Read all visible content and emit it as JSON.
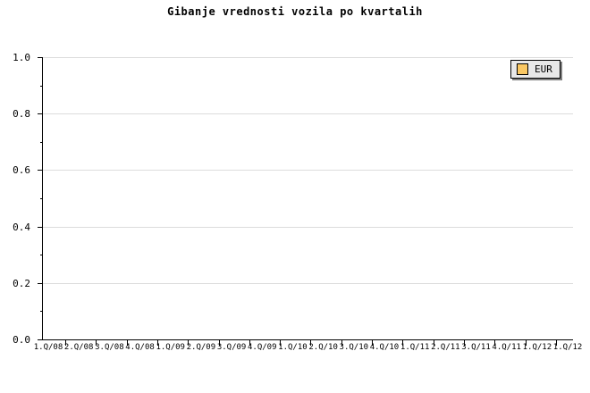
{
  "title": "Gibanje vrednosti vozila po kvartalih",
  "legend": {
    "label": "EUR"
  },
  "colors": {
    "background": "#FFFFFF",
    "text": "#000000",
    "axis_line": "#000000",
    "grid_line": "#DCDCDC",
    "legend_background": "#E8E8E8",
    "legend_border": "#000000",
    "legend_shadow": "#808080",
    "series_eur": "#FAC864"
  },
  "y_axis": {
    "tick_labels": [
      "1.0",
      "0.8",
      "0.6",
      "0.4",
      "0.2",
      "0.0"
    ],
    "major_tick_values": [
      1.0,
      0.8,
      0.6,
      0.4,
      0.2,
      0.0
    ],
    "minor_tick_values": [
      0.9,
      0.7,
      0.5,
      0.3,
      0.1
    ]
  },
  "x_axis": {
    "tick_labels": [
      "1.Q/08",
      "2.Q/08",
      "3.Q/08",
      "4.Q/08",
      "1.Q/09",
      "2.Q/09",
      "3.Q/09",
      "4.Q/09",
      "1.Q/10",
      "2.Q/10",
      "3.Q/10",
      "4.Q/10",
      "1.Q/11",
      "2.Q/11",
      "3.Q/11",
      "4.Q/11",
      "1.Q/12",
      "1.Q/12"
    ]
  },
  "chart_data": {
    "type": "bar",
    "title": "Gibanje vrednosti vozila po kvartalih",
    "categories": [
      "1.Q/08",
      "2.Q/08",
      "3.Q/08",
      "4.Q/08",
      "1.Q/09",
      "2.Q/09",
      "3.Q/09",
      "4.Q/09",
      "1.Q/10",
      "2.Q/10",
      "3.Q/10",
      "4.Q/10",
      "1.Q/11",
      "2.Q/11",
      "3.Q/11",
      "4.Q/11",
      "1.Q/12",
      "1.Q/12"
    ],
    "series": [
      {
        "name": "EUR",
        "color": "#FAC864",
        "values": []
      }
    ],
    "xlabel": "",
    "ylabel": "",
    "ylim": [
      0.0,
      1.0
    ],
    "y_major_step": 0.2,
    "y_minor_step": 0.1,
    "grid": "horizontal-only",
    "legend_position": "top-right",
    "plot_area_empty": true
  }
}
